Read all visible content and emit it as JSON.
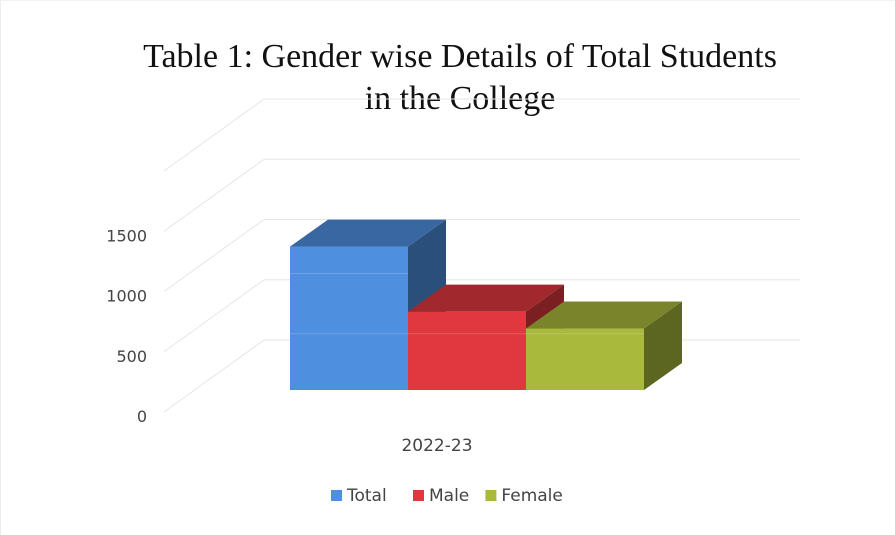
{
  "chart_data": {
    "type": "bar",
    "title_line1": "Table 1: Gender wise Details of Total Students",
    "title_line2": "in the College",
    "categories": [
      "2022-23"
    ],
    "series": [
      {
        "name": "Total",
        "values": [
          1190
        ],
        "color": "#4f8fe0"
      },
      {
        "name": "Male",
        "values": [
          650
        ],
        "color": "#e0383e"
      },
      {
        "name": "Female",
        "values": [
          510
        ],
        "color": "#a9b93c"
      }
    ],
    "yticks": [
      0,
      500,
      1000,
      1500
    ],
    "ylim": [
      0,
      1500
    ],
    "style": "3d-column",
    "grid": true,
    "legend_position": "bottom"
  }
}
